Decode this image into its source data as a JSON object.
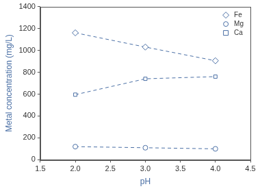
{
  "chart_data": {
    "type": "line",
    "x_label": "pH",
    "y_label": "Metal concentration (mg/L)",
    "x": [
      2.0,
      3.0,
      4.0
    ],
    "series": [
      {
        "name": "Fe",
        "color": "#4a6fa5",
        "marker": "diamond",
        "line_style": "dashed",
        "values": [
          1160,
          1030,
          905
        ]
      },
      {
        "name": "Mg",
        "color": "#4a6fa5",
        "marker": "circle",
        "line_style": "dashed",
        "values": [
          120,
          110,
          100
        ]
      },
      {
        "name": "Ca",
        "color": "#4a6fa5",
        "marker": "square",
        "line_style": "dashed",
        "values": [
          595,
          740,
          760
        ]
      }
    ],
    "xlim": [
      1.5,
      4.5
    ],
    "xticks": [
      1.5,
      {
        "value": 2,
        "label": "2.0"
      },
      2.5,
      {
        "value": 3,
        "label": "3.0"
      },
      3.5,
      {
        "value": 4,
        "label": "4.0"
      },
      4.5
    ],
    "ylim": [
      0,
      1400
    ],
    "yticks": [
      0,
      200,
      400,
      600,
      800,
      1000,
      1200,
      1400
    ],
    "grid": false,
    "legend": "upper right"
  }
}
